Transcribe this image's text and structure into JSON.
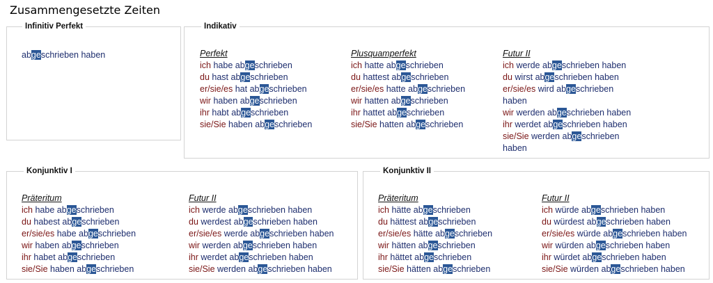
{
  "title": "Zusammengesetzte Zeiten",
  "infinitiv": {
    "legend": "Infinitiv Perfekt",
    "form": {
      "pre": "ab",
      "hl": "ge",
      "post": "schrieben haben"
    }
  },
  "indikativ": {
    "legend": "Indikativ",
    "perfekt": {
      "label": "Perfekt",
      "lines": [
        {
          "pro": "ich",
          "aux": "habe",
          "pre": "ab",
          "hl": "ge",
          "post": "schrieben"
        },
        {
          "pro": "du",
          "aux": "hast",
          "pre": "ab",
          "hl": "ge",
          "post": "schrieben"
        },
        {
          "pro": "er/sie/es",
          "aux": "hat",
          "pre": "ab",
          "hl": "ge",
          "post": "schrieben"
        },
        {
          "pro": "wir",
          "aux": "haben",
          "pre": "ab",
          "hl": "ge",
          "post": "schrieben"
        },
        {
          "pro": "ihr",
          "aux": "habt",
          "pre": "ab",
          "hl": "ge",
          "post": "schrieben"
        },
        {
          "pro": "sie/Sie",
          "aux": "haben",
          "pre": "ab",
          "hl": "ge",
          "post": "schrieben"
        }
      ]
    },
    "plusquamperfekt": {
      "label": "Plusquamperfekt",
      "lines": [
        {
          "pro": "ich",
          "aux": "hatte",
          "pre": "ab",
          "hl": "ge",
          "post": "schrieben"
        },
        {
          "pro": "du",
          "aux": "hattest",
          "pre": "ab",
          "hl": "ge",
          "post": "schrieben"
        },
        {
          "pro": "er/sie/es",
          "aux": "hatte",
          "pre": "ab",
          "hl": "ge",
          "post": "schrieben"
        },
        {
          "pro": "wir",
          "aux": "hatten",
          "pre": "ab",
          "hl": "ge",
          "post": "schrieben"
        },
        {
          "pro": "ihr",
          "aux": "hattet",
          "pre": "ab",
          "hl": "ge",
          "post": "schrieben"
        },
        {
          "pro": "sie/Sie",
          "aux": "hatten",
          "pre": "ab",
          "hl": "ge",
          "post": "schrieben"
        }
      ]
    },
    "futur2": {
      "label": "Futur II",
      "lines": [
        {
          "pro": "ich",
          "aux": "werde",
          "pre": "ab",
          "hl": "ge",
          "post": "schrieben haben"
        },
        {
          "pro": "du",
          "aux": "wirst",
          "pre": "ab",
          "hl": "ge",
          "post": "schrieben haben"
        },
        {
          "pro": "er/sie/es",
          "aux": "wird",
          "pre": "ab",
          "hl": "ge",
          "post": "schrieben",
          "cont": "haben"
        },
        {
          "pro": "wir",
          "aux": "werden",
          "pre": "ab",
          "hl": "ge",
          "post": "schrieben haben"
        },
        {
          "pro": "ihr",
          "aux": "werdet",
          "pre": "ab",
          "hl": "ge",
          "post": "schrieben haben"
        },
        {
          "pro": "sie/Sie",
          "aux": "werden",
          "pre": "ab",
          "hl": "ge",
          "post": "schrieben",
          "cont": "haben"
        }
      ]
    }
  },
  "konjunktiv1": {
    "legend": "Konjunktiv I",
    "praeteritum": {
      "label": "Präteritum",
      "lines": [
        {
          "pro": "ich",
          "aux": "habe",
          "pre": "ab",
          "hl": "ge",
          "post": "schrieben"
        },
        {
          "pro": "du",
          "aux": "habest",
          "pre": "ab",
          "hl": "ge",
          "post": "schrieben"
        },
        {
          "pro": "er/sie/es",
          "aux": "habe",
          "pre": "ab",
          "hl": "ge",
          "post": "schrieben"
        },
        {
          "pro": "wir",
          "aux": "haben",
          "pre": "ab",
          "hl": "ge",
          "post": "schrieben"
        },
        {
          "pro": "ihr",
          "aux": "habet",
          "pre": "ab",
          "hl": "ge",
          "post": "schrieben"
        },
        {
          "pro": "sie/Sie",
          "aux": "haben",
          "pre": "ab",
          "hl": "ge",
          "post": "schrieben"
        }
      ]
    },
    "futur2": {
      "label": "Futur II",
      "lines": [
        {
          "pro": "ich",
          "aux": "werde",
          "pre": "ab",
          "hl": "ge",
          "post": "schrieben haben"
        },
        {
          "pro": "du",
          "aux": "werdest",
          "pre": "ab",
          "hl": "ge",
          "post": "schrieben haben"
        },
        {
          "pro": "er/sie/es",
          "aux": "werde",
          "pre": "ab",
          "hl": "ge",
          "post": "schrieben haben"
        },
        {
          "pro": "wir",
          "aux": "werden",
          "pre": "ab",
          "hl": "ge",
          "post": "schrieben haben"
        },
        {
          "pro": "ihr",
          "aux": "werdet",
          "pre": "ab",
          "hl": "ge",
          "post": "schrieben haben"
        },
        {
          "pro": "sie/Sie",
          "aux": "werden",
          "pre": "ab",
          "hl": "ge",
          "post": "schrieben haben"
        }
      ]
    }
  },
  "konjunktiv2": {
    "legend": "Konjunktiv II",
    "praeteritum": {
      "label": "Präteritum",
      "lines": [
        {
          "pro": "ich",
          "aux": "hätte",
          "pre": "ab",
          "hl": "ge",
          "post": "schrieben"
        },
        {
          "pro": "du",
          "aux": "hättest",
          "pre": "ab",
          "hl": "ge",
          "post": "schrieben"
        },
        {
          "pro": "er/sie/es",
          "aux": "hätte",
          "pre": "ab",
          "hl": "ge",
          "post": "schrieben"
        },
        {
          "pro": "wir",
          "aux": "hätten",
          "pre": "ab",
          "hl": "ge",
          "post": "schrieben"
        },
        {
          "pro": "ihr",
          "aux": "hättet",
          "pre": "ab",
          "hl": "ge",
          "post": "schrieben"
        },
        {
          "pro": "sie/Sie",
          "aux": "hätten",
          "pre": "ab",
          "hl": "ge",
          "post": "schrieben"
        }
      ]
    },
    "futur2": {
      "label": "Futur II",
      "lines": [
        {
          "pro": "ich",
          "aux": "würde",
          "pre": "ab",
          "hl": "ge",
          "post": "schrieben haben"
        },
        {
          "pro": "du",
          "aux": "würdest",
          "pre": "ab",
          "hl": "ge",
          "post": "schrieben haben"
        },
        {
          "pro": "er/sie/es",
          "aux": "würde",
          "pre": "ab",
          "hl": "ge",
          "post": "schrieben haben"
        },
        {
          "pro": "wir",
          "aux": "würden",
          "pre": "ab",
          "hl": "ge",
          "post": "schrieben haben"
        },
        {
          "pro": "ihr",
          "aux": "würdet",
          "pre": "ab",
          "hl": "ge",
          "post": "schrieben haben"
        },
        {
          "pro": "sie/Sie",
          "aux": "würden",
          "pre": "ab",
          "hl": "ge",
          "post": "schrieben haben"
        }
      ]
    }
  },
  "colors": {
    "pronoun": "#7a1515",
    "verb": "#1e2e6e",
    "highlight_bg": "#2b5796",
    "highlight_fg": "#ffffff",
    "border": "#d3d3d3"
  }
}
